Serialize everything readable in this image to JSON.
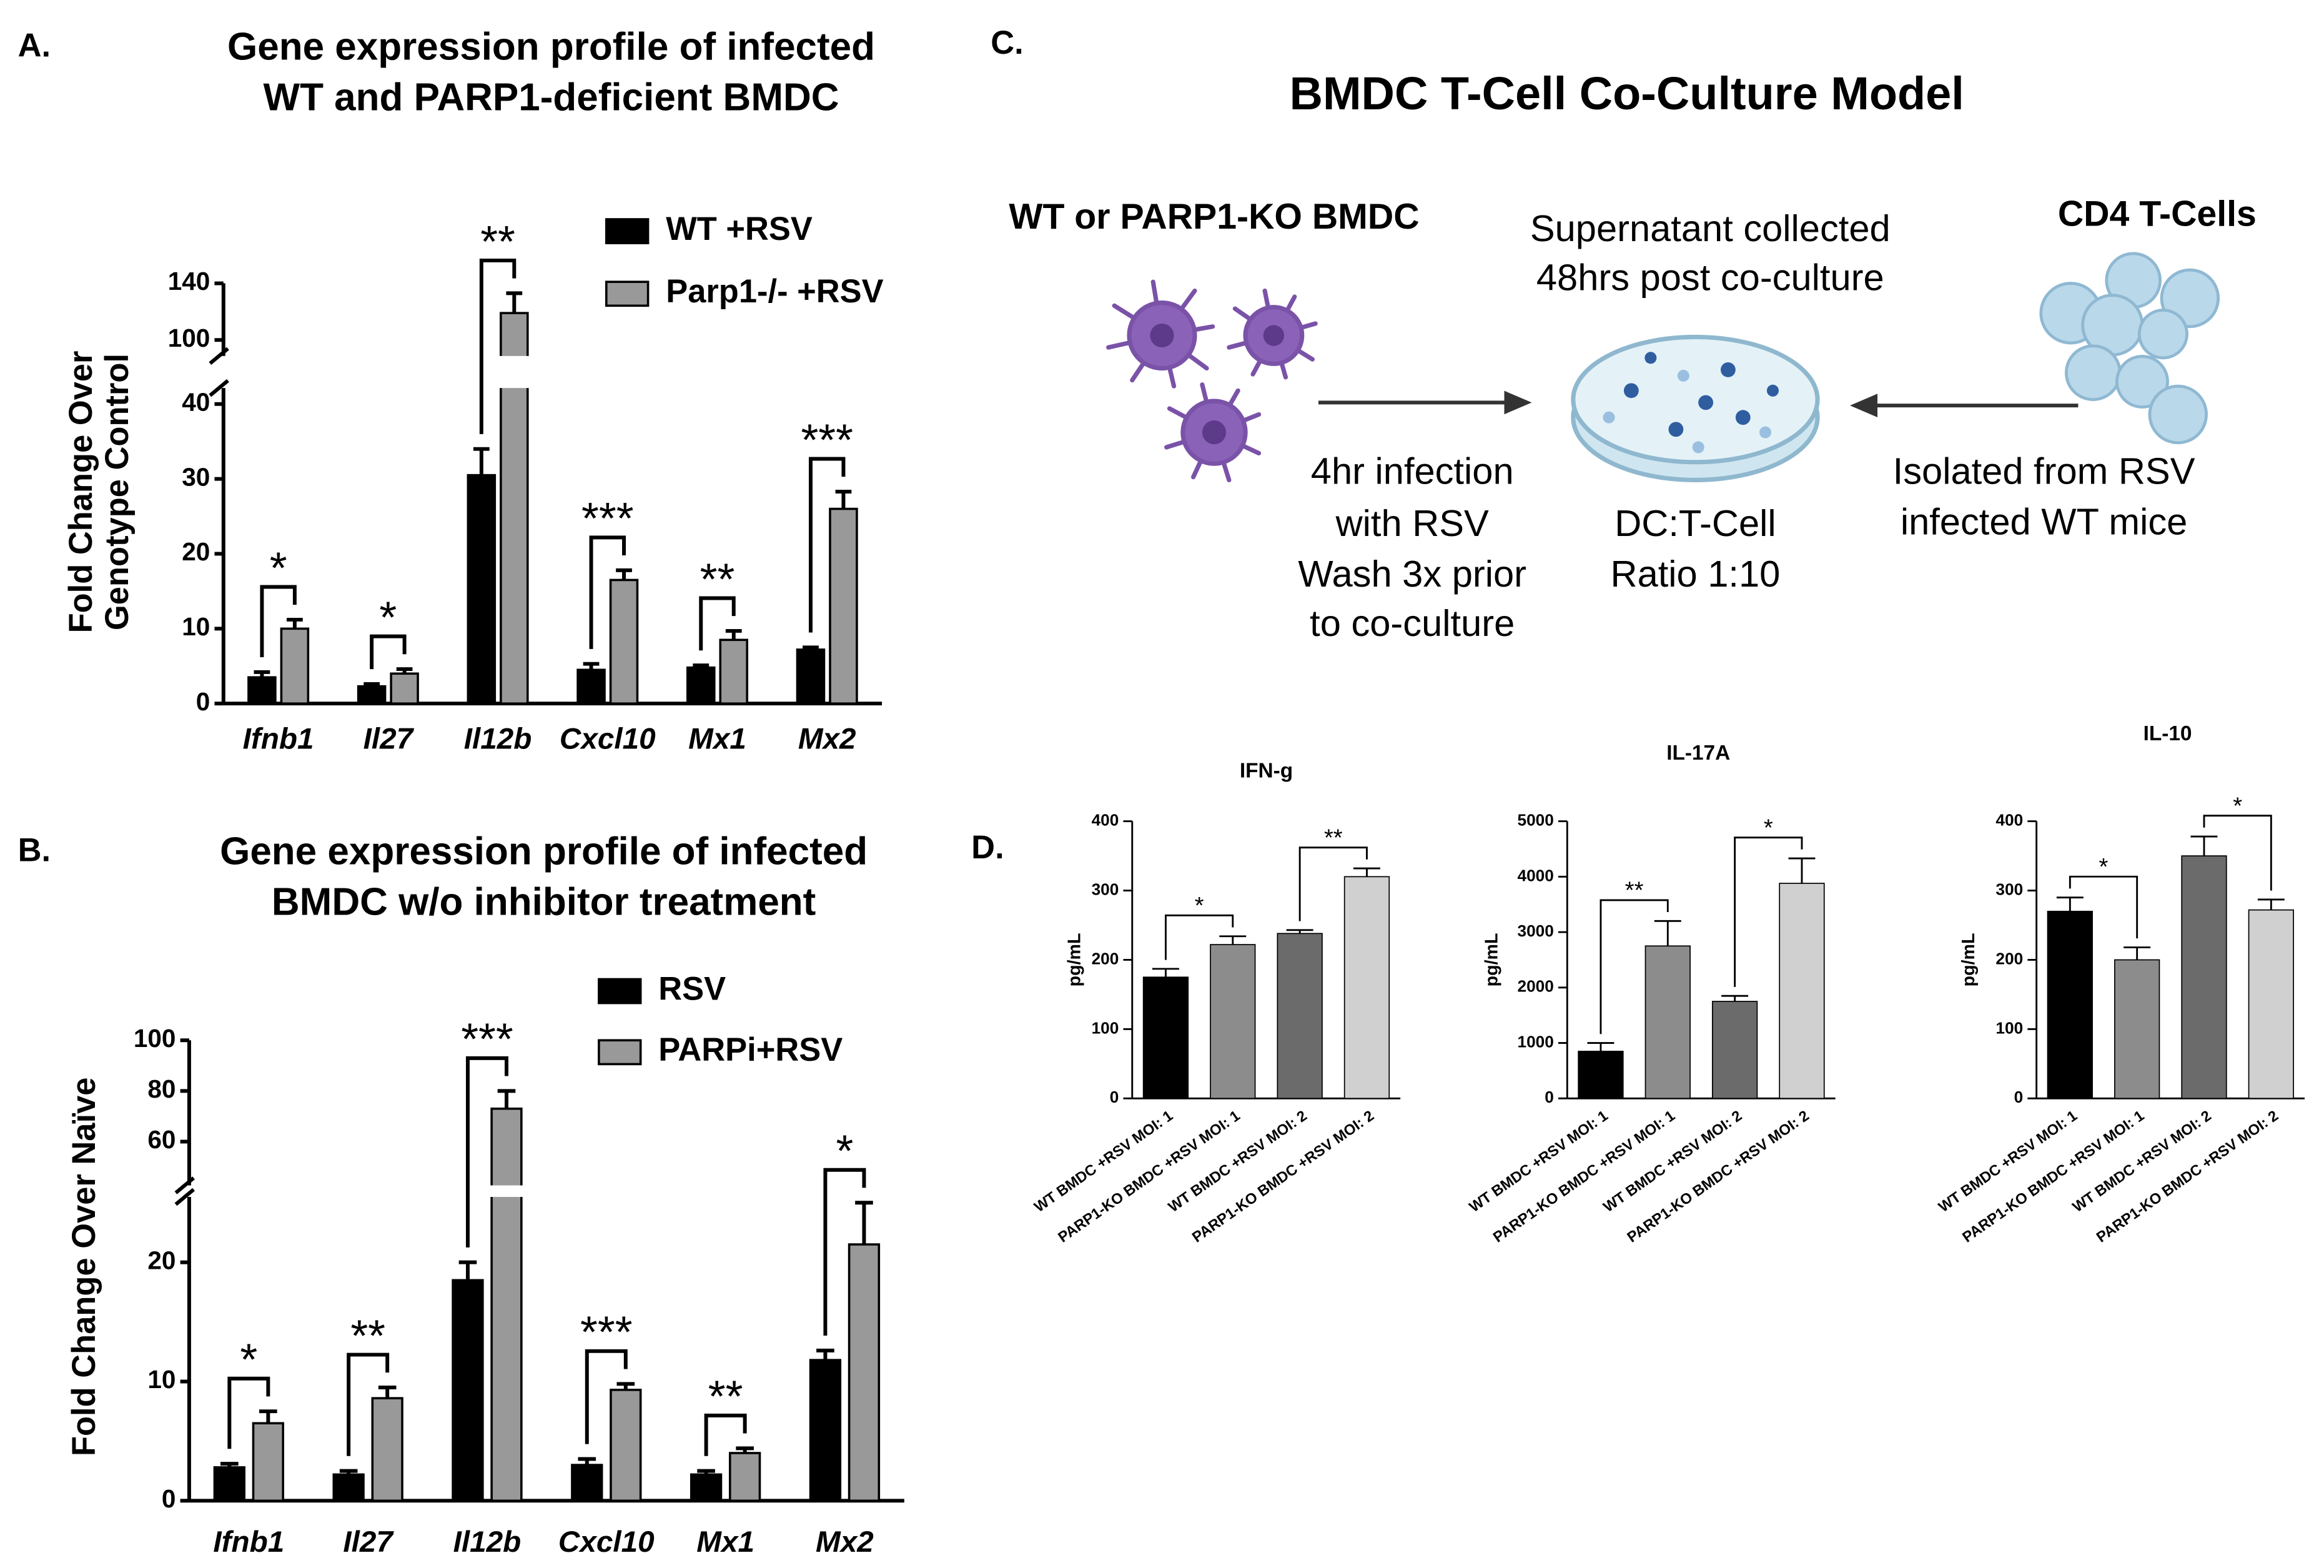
{
  "panel_labels": [
    "A.",
    "B.",
    "C.",
    "D."
  ],
  "diagram": {
    "title": "BMDC T-Cell Co-Culture Model",
    "left_label": "WT or PARP1-KO BMDC",
    "top_note": [
      "Supernatant collected",
      "48hrs post co-culture"
    ],
    "right_label": "CD4 T-Cells",
    "left_note": [
      "4hr infection",
      "with RSV",
      "Wash 3x prior",
      "to co-culture"
    ],
    "center_note": [
      "DC:T-Cell",
      "Ratio 1:10"
    ],
    "right_note": [
      "Isolated from RSV",
      "infected WT mice"
    ]
  },
  "chart_data": [
    {
      "type": "bar",
      "title": [
        "Gene expression profile of infected",
        "WT and PARP1-deficient BMDC"
      ],
      "ylabel": [
        "Fold Change Over",
        "Genotype Control"
      ],
      "categories": [
        "Ifnb1",
        "Il27",
        "Il12b",
        "Cxcl10",
        "Mx1",
        "Mx2"
      ],
      "series": [
        {
          "name": "WT +RSV",
          "color": "#000000",
          "values": [
            3.5,
            2.3,
            30.5,
            4.5,
            4.8,
            7.2
          ],
          "errors": [
            0.7,
            0.3,
            3.5,
            0.8,
            0.3,
            0.3
          ]
        },
        {
          "name": "Parp1-/- +RSV",
          "color": "#999999",
          "values": [
            10,
            4,
            119,
            16.5,
            8.5,
            26
          ],
          "errors": [
            1.2,
            0.6,
            14,
            1.3,
            1.2,
            2.3
          ]
        }
      ],
      "ylim": [
        0,
        140
      ],
      "ybreak": [
        40,
        100
      ],
      "yticks": [
        0,
        10,
        20,
        30,
        40,
        100,
        140
      ],
      "significance": [
        "*",
        "*",
        "**",
        "***",
        "**",
        "***"
      ]
    },
    {
      "type": "bar",
      "title": [
        "Gene expression profile of infected",
        "BMDC w/o inhibitor treatment"
      ],
      "ylabel": [
        "Fold Change Over Naïve"
      ],
      "categories": [
        "Ifnb1",
        "Il27",
        "Il12b",
        "Cxcl10",
        "Mx1",
        "Mx2"
      ],
      "series": [
        {
          "name": "RSV",
          "color": "#000000",
          "values": [
            2.8,
            2.2,
            18.5,
            3,
            2.2,
            11.8
          ],
          "errors": [
            0.3,
            0.3,
            1.5,
            0.5,
            0.3,
            0.8
          ]
        },
        {
          "name": "PARPi+RSV",
          "color": "#999999",
          "values": [
            6.5,
            8.6,
            73,
            9.3,
            4,
            21.5
          ],
          "errors": [
            1,
            0.9,
            7,
            0.5,
            0.4,
            3.5
          ]
        }
      ],
      "ylim": [
        0,
        100
      ],
      "ybreak": [
        25,
        45
      ],
      "yticks": [
        0,
        10,
        20,
        60,
        80,
        100
      ],
      "significance": [
        "*",
        "**",
        "***",
        "***",
        "**",
        "*"
      ]
    },
    {
      "type": "bar",
      "title": "IFN-g",
      "ylabel": "pg/mL",
      "categories": [
        "WT BMDC +RSV MOI: 1",
        "PARP1-KO BMDC +RSV MOI: 1",
        "WT BMDC +RSV MOI: 2",
        "PARP1-KO BMDC +RSV MOI: 2"
      ],
      "values": [
        175,
        222,
        238,
        320
      ],
      "errors": [
        12,
        12,
        5,
        12
      ],
      "colors": [
        "#000000",
        "#8c8c8c",
        "#6b6b6b",
        "#d0d0d0"
      ],
      "ylim": [
        0,
        400
      ],
      "yticks": [
        0,
        100,
        200,
        300,
        400
      ],
      "significance": [
        "*",
        "**"
      ]
    },
    {
      "type": "bar",
      "title": "IL-17A",
      "ylabel": "pg/mL",
      "categories": [
        "WT BMDC +RSV MOI: 1",
        "PARP1-KO BMDC +RSV MOI: 1",
        "WT BMDC +RSV MOI: 2",
        "PARP1-KO BMDC +RSV MOI: 2"
      ],
      "values": [
        850,
        2750,
        1750,
        3880
      ],
      "errors": [
        150,
        450,
        100,
        450
      ],
      "colors": [
        "#000000",
        "#8c8c8c",
        "#6b6b6b",
        "#d0d0d0"
      ],
      "ylim": [
        0,
        5000
      ],
      "yticks": [
        0,
        1000,
        2000,
        3000,
        4000,
        5000
      ],
      "significance": [
        "**",
        "*"
      ]
    },
    {
      "type": "bar",
      "title": "IL-10",
      "ylabel": "pg/mL",
      "categories": [
        "WT BMDC +RSV MOI: 1",
        "PARP1-KO BMDC +RSV MOI: 1",
        "WT BMDC +RSV MOI: 2",
        "PARP1-KO BMDC +RSV MOI: 2"
      ],
      "values": [
        270,
        200,
        350,
        272
      ],
      "errors": [
        20,
        18,
        28,
        15
      ],
      "colors": [
        "#000000",
        "#8c8c8c",
        "#6b6b6b",
        "#d0d0d0"
      ],
      "ylim": [
        0,
        400
      ],
      "yticks": [
        0,
        100,
        200,
        300,
        400
      ],
      "significance": [
        "*",
        "*"
      ]
    }
  ]
}
